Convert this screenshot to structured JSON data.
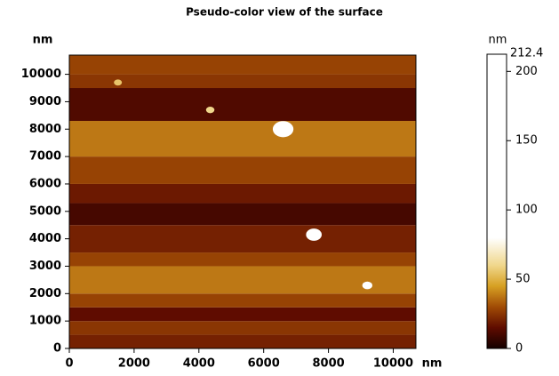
{
  "chart_data": {
    "type": "heatmap",
    "title": "Pseudo-color view of the surface",
    "x_label": "nm",
    "y_label": "nm",
    "z_label": "nm",
    "xlim": [
      0,
      10700
    ],
    "ylim": [
      0,
      10700
    ],
    "xticks": [
      0,
      2000,
      4000,
      6000,
      8000,
      10000
    ],
    "yticks": [
      0,
      1000,
      2000,
      3000,
      4000,
      5000,
      6000,
      7000,
      8000,
      9000,
      10000
    ],
    "y_edges": [
      0,
      500,
      1000,
      1500,
      2000,
      3000,
      3500,
      4500,
      5300,
      6000,
      7000,
      8300,
      9500,
      10000,
      10700
    ],
    "values": [
      20,
      25,
      15,
      28,
      38,
      28,
      20,
      10,
      18,
      28,
      38,
      12,
      25,
      28
    ],
    "particles": {
      "x": [
        6600,
        7550,
        9200,
        4350,
        1500
      ],
      "y": [
        8000,
        4150,
        2300,
        8700,
        9700
      ],
      "heights": [
        212,
        150,
        80,
        60,
        55
      ]
    },
    "zlim": [
      0,
      212.4
    ],
    "zticks": [
      0,
      50,
      100,
      150,
      200
    ]
  }
}
